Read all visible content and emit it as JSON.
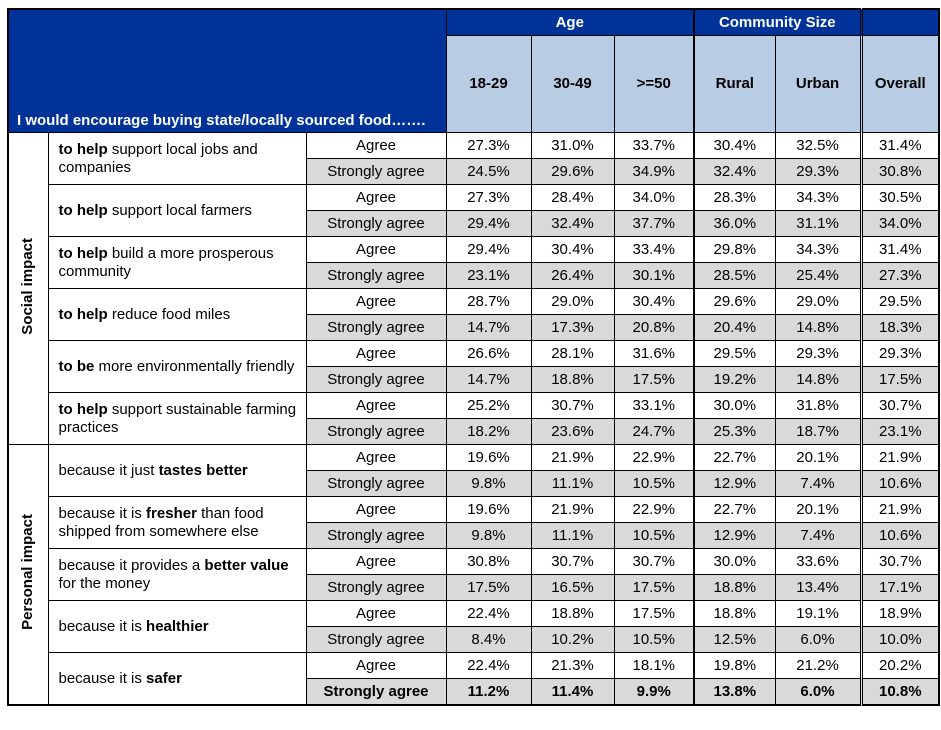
{
  "header": {
    "title": "I would encourage buying state/locally sourced food…….",
    "groups": [
      {
        "label": "Age",
        "columns": [
          "18-29",
          "30-49",
          ">=50"
        ]
      },
      {
        "label": "Community Size",
        "columns": [
          "Rural",
          "Urban"
        ]
      }
    ],
    "overall": "Overall"
  },
  "sections": [
    {
      "label": "Social impact",
      "items": [
        {
          "label": [
            {
              "text": "to help",
              "bold": true
            },
            {
              "text": " support local jobs and companies"
            }
          ],
          "rows": [
            {
              "response": "Agree",
              "values": [
                "27.3%",
                "31.0%",
                "33.7%",
                "30.4%",
                "32.5%",
                "31.4%"
              ]
            },
            {
              "response": "Strongly agree",
              "values": [
                "24.5%",
                "29.6%",
                "34.9%",
                "32.4%",
                "29.3%",
                "30.8%"
              ]
            }
          ]
        },
        {
          "label": [
            {
              "text": "to help",
              "bold": true
            },
            {
              "text": " support local farmers"
            }
          ],
          "rows": [
            {
              "response": "Agree",
              "values": [
                "27.3%",
                "28.4%",
                "34.0%",
                "28.3%",
                "34.3%",
                "30.5%"
              ]
            },
            {
              "response": "Strongly agree",
              "values": [
                "29.4%",
                "32.4%",
                "37.7%",
                "36.0%",
                "31.1%",
                "34.0%"
              ]
            }
          ]
        },
        {
          "label": [
            {
              "text": "to help",
              "bold": true
            },
            {
              "text": " build a more prosperous community"
            }
          ],
          "rows": [
            {
              "response": "Agree",
              "values": [
                "29.4%",
                "30.4%",
                "33.4%",
                "29.8%",
                "34.3%",
                "31.4%"
              ]
            },
            {
              "response": "Strongly agree",
              "values": [
                "23.1%",
                "26.4%",
                "30.1%",
                "28.5%",
                "25.4%",
                "27.3%"
              ]
            }
          ]
        },
        {
          "label": [
            {
              "text": "to help",
              "bold": true
            },
            {
              "text": " reduce food miles"
            }
          ],
          "rows": [
            {
              "response": "Agree",
              "values": [
                "28.7%",
                "29.0%",
                "30.4%",
                "29.6%",
                "29.0%",
                "29.5%"
              ]
            },
            {
              "response": "Strongly agree",
              "values": [
                "14.7%",
                "17.3%",
                "20.8%",
                "20.4%",
                "14.8%",
                "18.3%"
              ]
            }
          ]
        },
        {
          "label": [
            {
              "text": "to be",
              "bold": true
            },
            {
              "text": " more environmentally friendly"
            }
          ],
          "rows": [
            {
              "response": "Agree",
              "values": [
                "26.6%",
                "28.1%",
                "31.6%",
                "29.5%",
                "29.3%",
                "29.3%"
              ]
            },
            {
              "response": "Strongly agree",
              "values": [
                "14.7%",
                "18.8%",
                "17.5%",
                "19.2%",
                "14.8%",
                "17.5%"
              ]
            }
          ]
        },
        {
          "label": [
            {
              "text": "to help",
              "bold": true
            },
            {
              "text": " support sustainable farming practices"
            }
          ],
          "rows": [
            {
              "response": "Agree",
              "values": [
                "25.2%",
                "30.7%",
                "33.1%",
                "30.0%",
                "31.8%",
                "30.7%"
              ]
            },
            {
              "response": "Strongly agree",
              "values": [
                "18.2%",
                "23.6%",
                "24.7%",
                "25.3%",
                "18.7%",
                "23.1%"
              ]
            }
          ]
        }
      ]
    },
    {
      "label": "Personal impact",
      "items": [
        {
          "label": [
            {
              "text": "because it just "
            },
            {
              "text": "tastes better",
              "bold": true
            }
          ],
          "rows": [
            {
              "response": "Agree",
              "values": [
                "19.6%",
                "21.9%",
                "22.9%",
                "22.7%",
                "20.1%",
                "21.9%"
              ]
            },
            {
              "response": "Strongly agree",
              "values": [
                "9.8%",
                "11.1%",
                "10.5%",
                "12.9%",
                "7.4%",
                "10.6%"
              ]
            }
          ]
        },
        {
          "label": [
            {
              "text": "because it is "
            },
            {
              "text": "fresher",
              "bold": true
            },
            {
              "text": " than food shipped from somewhere else"
            }
          ],
          "rows": [
            {
              "response": "Agree",
              "values": [
                "19.6%",
                "21.9%",
                "22.9%",
                "22.7%",
                "20.1%",
                "21.9%"
              ]
            },
            {
              "response": "Strongly agree",
              "values": [
                "9.8%",
                "11.1%",
                "10.5%",
                "12.9%",
                "7.4%",
                "10.6%"
              ]
            }
          ]
        },
        {
          "label": [
            {
              "text": "because it provides a "
            },
            {
              "text": "better value",
              "bold": true
            },
            {
              "text": " for the money"
            }
          ],
          "rows": [
            {
              "response": "Agree",
              "values": [
                "30.8%",
                "30.7%",
                "30.7%",
                "30.0%",
                "33.6%",
                "30.7%"
              ]
            },
            {
              "response": "Strongly agree",
              "values": [
                "17.5%",
                "16.5%",
                "17.5%",
                "18.8%",
                "13.4%",
                "17.1%"
              ]
            }
          ]
        },
        {
          "label": [
            {
              "text": "because it is "
            },
            {
              "text": "healthier",
              "bold": true
            }
          ],
          "rows": [
            {
              "response": "Agree",
              "values": [
                "22.4%",
                "18.8%",
                "17.5%",
                "18.8%",
                "19.1%",
                "18.9%"
              ]
            },
            {
              "response": "Strongly agree",
              "values": [
                "8.4%",
                "10.2%",
                "10.5%",
                "12.5%",
                "6.0%",
                "10.0%"
              ]
            }
          ]
        },
        {
          "label": [
            {
              "text": "because it is "
            },
            {
              "text": "safer",
              "bold": true
            }
          ],
          "rows": [
            {
              "response": "Agree",
              "values": [
                "22.4%",
                "21.3%",
                "18.1%",
                "19.8%",
                "21.2%",
                "20.2%"
              ]
            },
            {
              "response": "Strongly agree",
              "values": [
                "11.2%",
                "11.4%",
                "9.9%",
                "13.8%",
                "6.0%",
                "10.8%"
              ],
              "bold": true
            }
          ]
        }
      ]
    }
  ]
}
